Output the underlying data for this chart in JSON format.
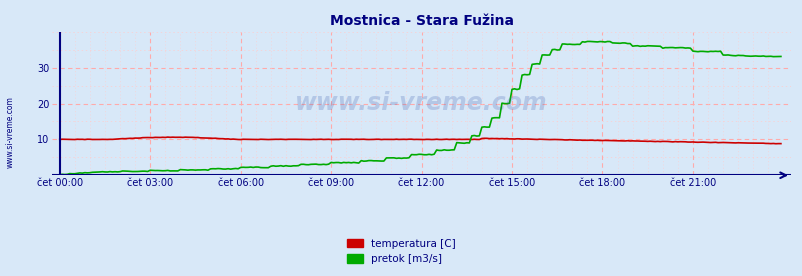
{
  "title": "Mostnica - Stara Fužina",
  "title_color": "#000080",
  "title_fontsize": 10,
  "bg_color": "#d8e8f8",
  "plot_bg_color": "#d8e8f8",
  "grid_color_major": "#ffaaaa",
  "grid_color_minor": "#ffcccc",
  "x_labels": [
    "čet 00:00",
    "čet 03:00",
    "čet 06:00",
    "čet 09:00",
    "čet 12:00",
    "čet 15:00",
    "čet 18:00",
    "čet 21:00"
  ],
  "y_ticks": [
    10,
    20,
    30
  ],
  "ylim": [
    0,
    40
  ],
  "n": 288,
  "legend_labels": [
    "temperatura [C]",
    "pretok [m3/s]"
  ],
  "legend_colors": [
    "#cc0000",
    "#00aa00"
  ],
  "watermark": "www.si-vreme.com",
  "left_label": "www.si-vreme.com",
  "axis_color": "#000080",
  "tick_color": "#000080",
  "tick_fontsize": 7
}
